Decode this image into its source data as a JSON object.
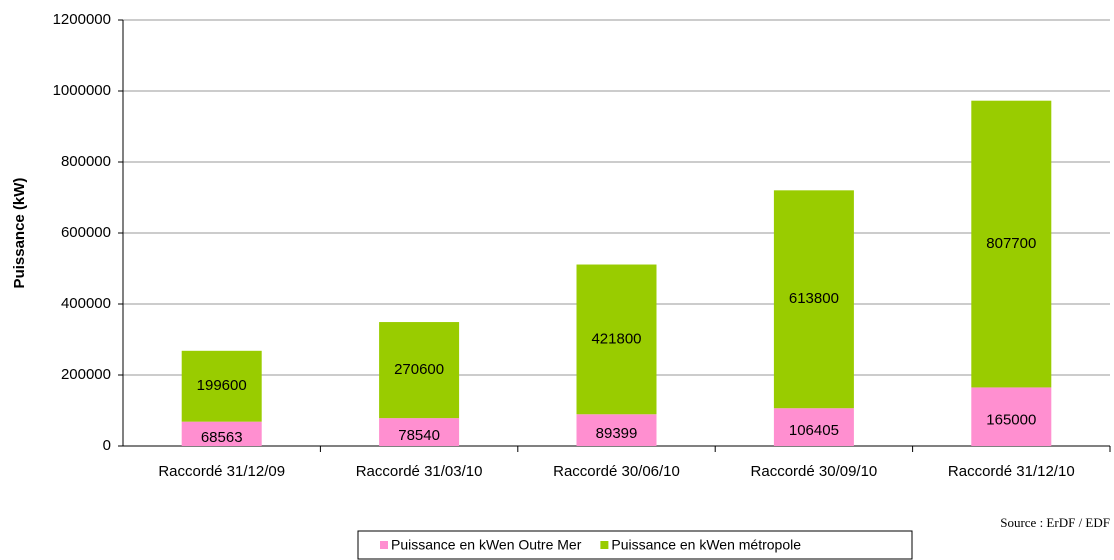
{
  "chart_data": {
    "type": "stacked_bar",
    "ylabel": "Puissance (kW)",
    "source": "Source : ErDF / EDF",
    "categories": [
      "Raccordé 31/12/09",
      "Raccordé 31/03/10",
      "Raccordé 30/06/10",
      "Raccordé 30/09/10",
      "Raccordé 31/12/10"
    ],
    "series": [
      {
        "name": "Puissance en kWen Outre Mer",
        "color": "#ff8fd0",
        "values": [
          68563,
          78540,
          89399,
          106405,
          165000
        ]
      },
      {
        "name": "Puissance en kWen métropole",
        "color": "#99cc00",
        "values": [
          199600,
          270600,
          421800,
          613800,
          807700
        ]
      }
    ],
    "ylim": [
      0,
      1200000
    ],
    "yticks": [
      0,
      200000,
      400000,
      600000,
      800000,
      1000000,
      1200000
    ],
    "grid": true
  }
}
